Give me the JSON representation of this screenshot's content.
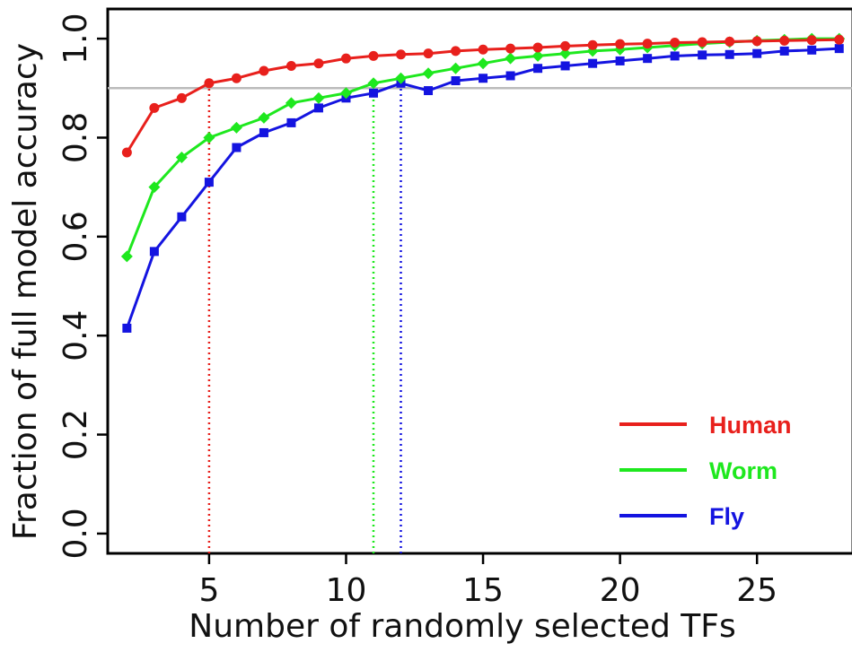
{
  "chart_data": {
    "type": "line",
    "xlabel": "Number of randomly selected TFs",
    "ylabel": "Fraction of full model accuracy",
    "xlim": [
      1.3,
      28.5
    ],
    "ylim": [
      -0.04,
      1.06
    ],
    "xticks": [
      5,
      10,
      15,
      20,
      25
    ],
    "yticks": [
      0.0,
      0.2,
      0.4,
      0.6,
      0.8,
      1.0
    ],
    "xtick_labels": [
      "5",
      "10",
      "15",
      "20",
      "25"
    ],
    "ytick_labels": [
      "0.0",
      "0.2",
      "0.4",
      "0.6",
      "0.8",
      "1.0"
    ],
    "grid": false,
    "legend_position": "bottom-right",
    "reference_line": {
      "y": 0.9,
      "color": "#bbbbbb"
    },
    "x": [
      2,
      3,
      4,
      5,
      6,
      7,
      8,
      9,
      10,
      11,
      12,
      13,
      14,
      15,
      16,
      17,
      18,
      19,
      20,
      21,
      22,
      23,
      24,
      25,
      26,
      27,
      28
    ],
    "series": [
      {
        "name": "Human",
        "color": "#e8201c",
        "marker": "circle",
        "values": [
          0.77,
          0.86,
          0.88,
          0.91,
          0.92,
          0.935,
          0.945,
          0.95,
          0.96,
          0.965,
          0.968,
          0.97,
          0.975,
          0.978,
          0.98,
          0.982,
          0.985,
          0.987,
          0.989,
          0.99,
          0.992,
          0.993,
          0.994,
          0.995,
          0.996,
          0.997,
          0.998
        ],
        "threshold_x": 5
      },
      {
        "name": "Worm",
        "color": "#1ee81e",
        "marker": "diamond",
        "values": [
          0.56,
          0.7,
          0.76,
          0.8,
          0.82,
          0.84,
          0.87,
          0.88,
          0.89,
          0.91,
          0.92,
          0.93,
          0.94,
          0.95,
          0.96,
          0.965,
          0.97,
          0.975,
          0.978,
          0.982,
          0.986,
          0.99,
          0.993,
          0.996,
          0.998,
          1.0,
          1.0
        ],
        "threshold_x": 11
      },
      {
        "name": "Fly",
        "color": "#1414e0",
        "marker": "square",
        "values": [
          0.415,
          0.57,
          0.64,
          0.71,
          0.78,
          0.81,
          0.83,
          0.86,
          0.88,
          0.89,
          0.91,
          0.895,
          0.915,
          0.92,
          0.925,
          0.94,
          0.945,
          0.95,
          0.955,
          0.96,
          0.965,
          0.967,
          0.968,
          0.97,
          0.975,
          0.977,
          0.98
        ],
        "threshold_x": 12
      }
    ]
  }
}
